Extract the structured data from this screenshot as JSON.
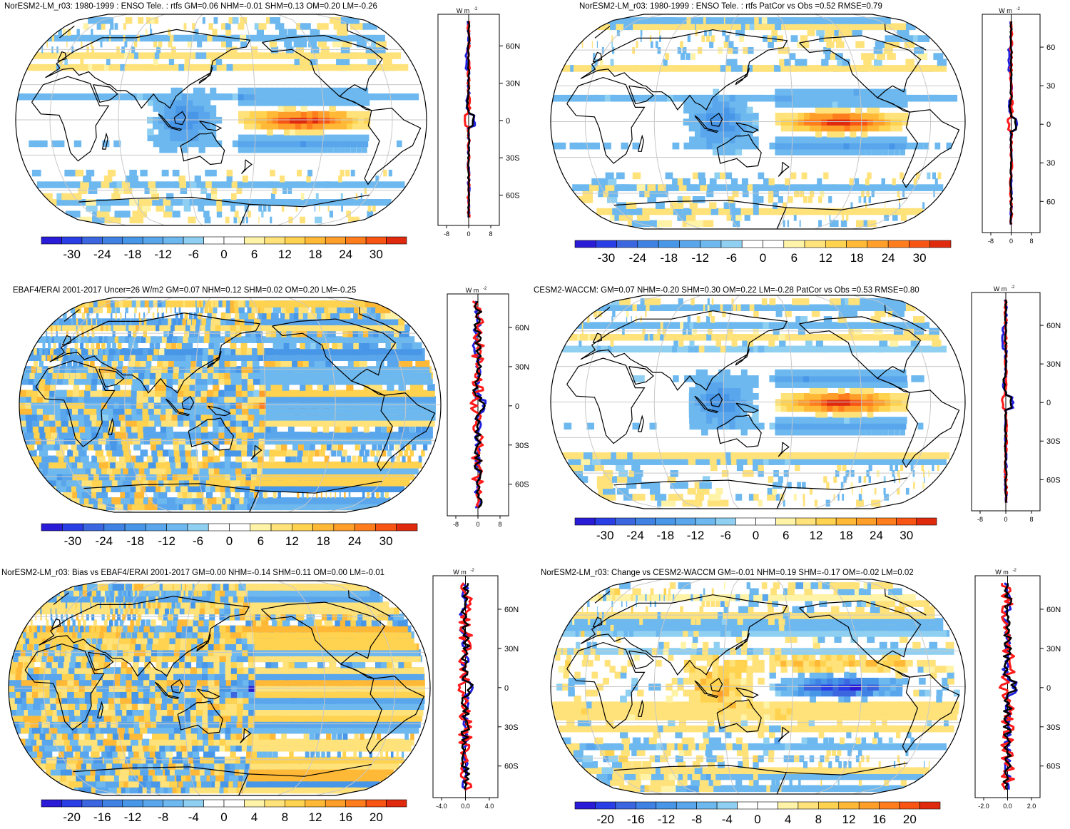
{
  "figure": {
    "colors": {
      "scale_negative": [
        "#2a1bd6",
        "#2a3ee6",
        "#3b66e0",
        "#3f82e4",
        "#4796e8",
        "#5aa6ec",
        "#6cb8ef",
        "#8fd0f2"
      ],
      "scale_positive": [
        "#fff3a8",
        "#ffe27a",
        "#ffd24f",
        "#ffb936",
        "#ff9f2a",
        "#ff7d1d",
        "#f85414",
        "#e02a0e"
      ],
      "profile_model": "#ff1a1a",
      "profile_reference": "#1f1fe0",
      "profile_difference": "#000000",
      "land_outline": "#000000",
      "graticule": "#c8c8c8"
    }
  },
  "panels": [
    {
      "id": "p1",
      "title": "NorESM2-LM_r03: 1980-1999 : ENSO Tele. : rtfs GM=0.06 NHM=-0.01 SHM=0.13 OM=0.20 LM=-0.26",
      "colorbar_labels": [
        "-30",
        "-24",
        "-18",
        "-12",
        "-6",
        "0",
        "6",
        "12",
        "18",
        "24",
        "30"
      ],
      "profile_unit": "W m",
      "profile_unit_exp": "-2",
      "lat_labels": [
        "60N",
        "30N",
        "0",
        "30S",
        "60S"
      ],
      "x_ticks": [
        "-8",
        "0",
        "8"
      ],
      "pattern": "enso_smooth"
    },
    {
      "id": "p2",
      "title": "NorESM2-LM_r03: 1980-1999 : ENSO Tele. : rtfs PatCor vs Obs =0.52 RMSE=0.79",
      "colorbar_labels": [
        "-30",
        "-24",
        "-18",
        "-12",
        "-6",
        "0",
        "6",
        "12",
        "18",
        "24",
        "30"
      ],
      "profile_unit": "W m",
      "profile_unit_exp": "-2",
      "lat_labels": [
        "60",
        "30",
        "0",
        "30",
        "60"
      ],
      "x_ticks": [
        "-8",
        "0",
        "8"
      ],
      "pattern": "enso_smooth"
    },
    {
      "id": "p3",
      "title": "EBAF4/ERAI 2001-2017 Uncer=26 W/m2 GM=0.07 NHM=0.12 SHM=0.02 OM=0.20 LM=-0.25",
      "colorbar_labels": [
        "-30",
        "-24",
        "-18",
        "-12",
        "-6",
        "0",
        "6",
        "12",
        "18",
        "24",
        "30"
      ],
      "profile_unit": "W m",
      "profile_unit_exp": "-2",
      "lat_labels": [
        "60N",
        "30N",
        "0",
        "30S",
        "60S"
      ],
      "x_ticks": [
        "-8",
        "0",
        "8"
      ],
      "pattern": "noisy"
    },
    {
      "id": "p4",
      "title": "CESM2-WACCM: GM=0.07 NHM=-0.20 SHM=0.30 OM=0.22 LM=-0.28 PatCor vs Obs =0.53 RMSE=0.80",
      "colorbar_labels": [
        "-30",
        "-24",
        "-18",
        "-12",
        "-6",
        "0",
        "6",
        "12",
        "18",
        "24",
        "30"
      ],
      "profile_unit": "W m",
      "profile_unit_exp": "-2",
      "lat_labels": [
        "60N",
        "30N",
        "0",
        "30S",
        "60S"
      ],
      "x_ticks": [
        "-8",
        "0",
        "8"
      ],
      "pattern": "enso_smooth"
    },
    {
      "id": "p5",
      "title": "NorESM2-LM_r03: Bias vs EBAF4/ERAI 2001-2017 GM=0.00 NHM=-0.14 SHM=0.11 OM=0.00 LM=-0.01",
      "colorbar_labels": [
        "-20",
        "-16",
        "-12",
        "-8",
        "-4",
        "0",
        "4",
        "8",
        "12",
        "16",
        "20"
      ],
      "profile_unit": "W m",
      "profile_unit_exp": "-2",
      "lat_labels": [
        "60N",
        "30N",
        "0",
        "30S",
        "60S"
      ],
      "x_ticks": [
        "-4.0",
        "0.0",
        "4.0"
      ],
      "pattern": "noisy_bias"
    },
    {
      "id": "p6",
      "title": "NorESM2-LM_r03: Change vs CESM2-WACCM GM=-0.01 NHM=0.19 SHM=-0.17 OM=-0.02 LM=0.02",
      "colorbar_labels": [
        "-20",
        "-16",
        "-12",
        "-8",
        "-4",
        "0",
        "4",
        "8",
        "12",
        "16",
        "20"
      ],
      "profile_unit": "W m",
      "profile_unit_exp": "-2",
      "lat_labels": [
        "60N",
        "30N",
        "0",
        "30S",
        "60S"
      ],
      "x_ticks": [
        "-2.0",
        "0.0",
        "2.0"
      ],
      "pattern": "change"
    }
  ]
}
